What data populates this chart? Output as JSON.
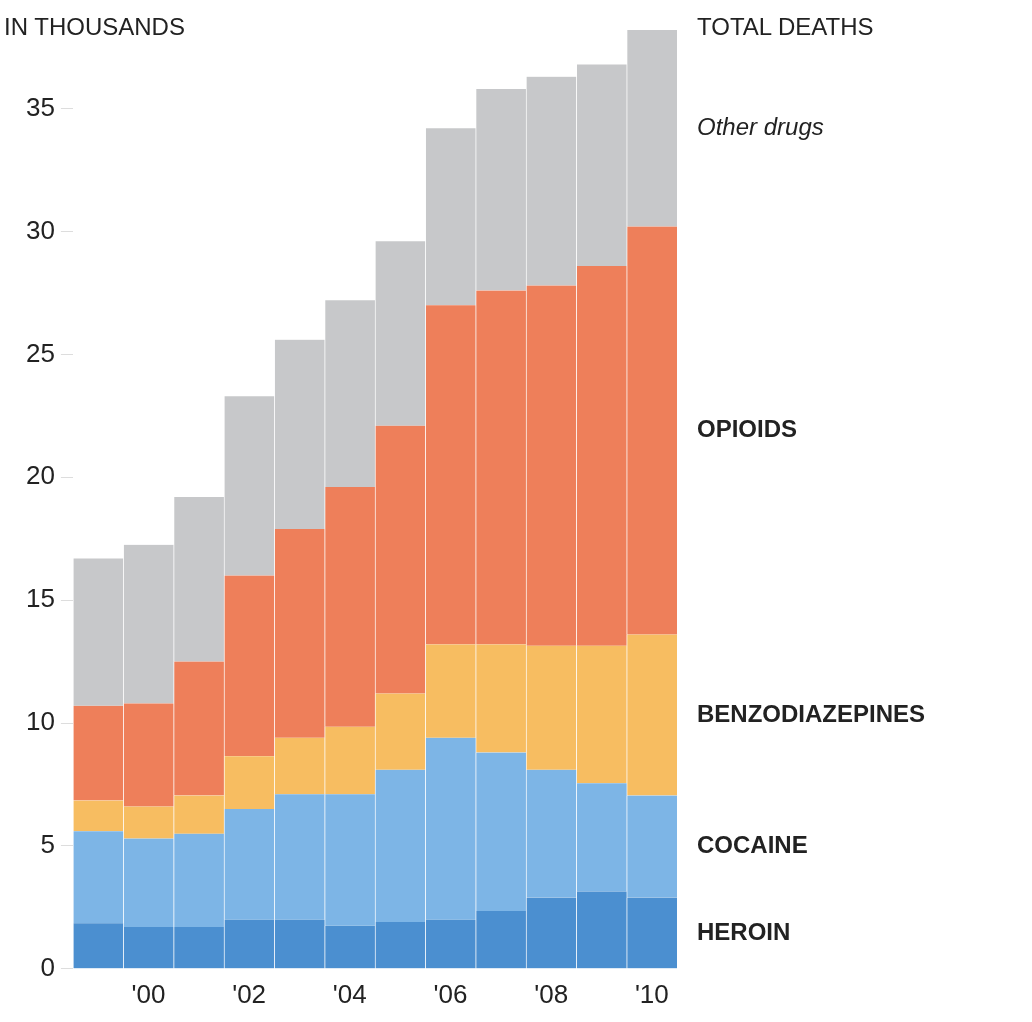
{
  "chart_data": {
    "type": "bar",
    "stacked": true,
    "ylabel": "IN THOUSANDS",
    "annotations": [
      "TOTAL DEATHS"
    ],
    "categories": [
      null,
      "'00",
      null,
      "'02",
      null,
      "'04",
      null,
      "'06",
      null,
      "'08",
      null,
      "'10"
    ],
    "series": [
      {
        "name": "HEROIN",
        "color": "#4b8fd0",
        "values": [
          1.85,
          1.7,
          1.7,
          2.0,
          2.0,
          1.75,
          1.9,
          2.0,
          2.35,
          2.9,
          3.15,
          2.9
        ]
      },
      {
        "name": "COCAINE",
        "color": "#7db5e6",
        "values": [
          3.75,
          3.6,
          3.8,
          4.5,
          5.1,
          5.35,
          6.2,
          7.4,
          6.45,
          5.2,
          4.4,
          4.15
        ]
      },
      {
        "name": "BENZODIAZEPINES",
        "color": "#f7bd61",
        "values": [
          1.25,
          1.3,
          1.55,
          2.15,
          2.3,
          2.75,
          3.1,
          3.8,
          4.4,
          5.05,
          5.6,
          6.55
        ]
      },
      {
        "name": "OPIOIDS",
        "color": "#ee7f5a",
        "values": [
          3.85,
          4.2,
          5.45,
          7.35,
          8.5,
          9.75,
          10.9,
          13.8,
          14.4,
          14.65,
          15.45,
          16.6
        ]
      },
      {
        "name": "Other drugs",
        "color": "#c7c8ca",
        "values": [
          6.0,
          6.45,
          6.7,
          7.3,
          7.7,
          7.6,
          7.5,
          7.2,
          8.2,
          8.5,
          8.2,
          8.0
        ]
      }
    ],
    "ylim": [
      0,
      38.2
    ],
    "yticks": [
      0,
      5,
      10,
      15,
      20,
      25,
      30,
      35
    ],
    "grid": false
  }
}
